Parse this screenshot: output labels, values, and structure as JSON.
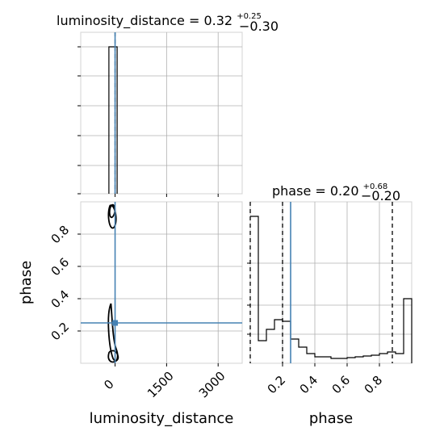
{
  "chart_data": [
    {
      "type": "histogram",
      "panel": "luminosity_distance-marginal",
      "title": {
        "name": "luminosity_distance",
        "value": "0.32",
        "upper_error": "+0.25",
        "lower_error": "−0.30"
      },
      "xlim": [
        -1000,
        3700
      ],
      "x_ticks_labeled": false,
      "y_ticks_labeled": false,
      "dominant_bin": {
        "x_start": -180,
        "x_end": 60,
        "relative_height": 1.0
      },
      "quantile_lines": [
        0
      ],
      "truth_line": 0,
      "grid": true
    },
    {
      "type": "contour",
      "panel": "luminosity_distance-vs-phase",
      "xlabel": "luminosity_distance",
      "ylabel": "phase",
      "xlim": [
        -1000,
        3700
      ],
      "ylim": [
        0.0,
        1.0
      ],
      "x_ticks": [
        "0",
        "1500",
        "3000"
      ],
      "y_ticks": [
        "0.2",
        "0.4",
        "0.6",
        "0.8"
      ],
      "truth": {
        "luminosity_distance": 0,
        "phase": 0.25
      },
      "grid": true
    },
    {
      "type": "histogram",
      "panel": "phase-marginal",
      "title": {
        "name": "phase",
        "value": "0.20",
        "upper_error": "+0.68",
        "lower_error": "−0.20"
      },
      "xlabel": "phase",
      "xlim": [
        0.0,
        1.0
      ],
      "x_ticks": [
        "0.2",
        "0.4",
        "0.6",
        "0.8"
      ],
      "y_ticks_labeled": false,
      "bins": {
        "edges": [
          0.0,
          0.05,
          0.1,
          0.15,
          0.2,
          0.25,
          0.3,
          0.35,
          0.4,
          0.45,
          0.5,
          0.55,
          0.6,
          0.65,
          0.7,
          0.75,
          0.8,
          0.85,
          0.9,
          0.95,
          1.0
        ],
        "values": [
          0.91,
          0.14,
          0.21,
          0.27,
          0.26,
          0.15,
          0.1,
          0.06,
          0.04,
          0.04,
          0.03,
          0.03,
          0.035,
          0.04,
          0.045,
          0.05,
          0.06,
          0.07,
          0.06,
          0.4
        ]
      },
      "quantile_lines": [
        0.0,
        0.2,
        0.88
      ],
      "truth_line": 0.25,
      "grid": true
    }
  ],
  "colors": {
    "truth": "#4682b4",
    "contour": "#000000",
    "histogram": "#000000",
    "grid": "#b0b0b0",
    "frame": "#d3d3d3"
  }
}
